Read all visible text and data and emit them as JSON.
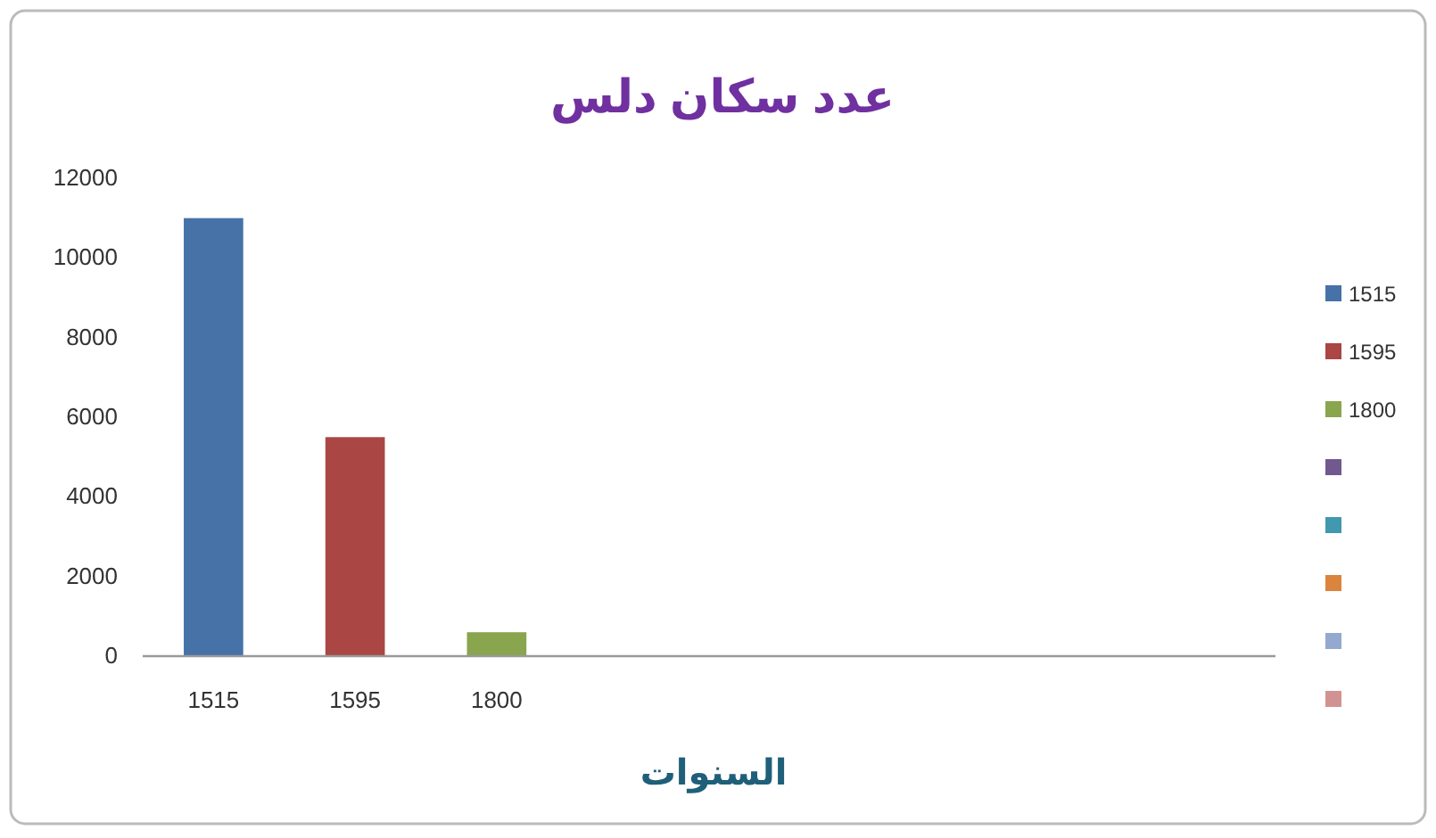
{
  "chart_data": {
    "type": "bar",
    "title": "عدد سكان دلس",
    "xlabel": "السنوات",
    "categories": [
      "1515",
      "1595",
      "1800",
      null,
      null,
      null,
      null,
      null
    ],
    "series": [
      {
        "name": "1515",
        "color": "#4672a8",
        "values": [
          11000,
          null,
          null,
          null,
          null,
          null,
          null,
          null
        ]
      },
      {
        "name": "1595",
        "color": "#aa4643",
        "values": [
          null,
          5500,
          null,
          null,
          null,
          null,
          null,
          null
        ]
      },
      {
        "name": "1800",
        "color": "#89a54e",
        "values": [
          null,
          null,
          600,
          null,
          null,
          null,
          null,
          null
        ]
      },
      {
        "color": "#71588f",
        "values": [
          null,
          null,
          null,
          null,
          null,
          null,
          null,
          null
        ]
      },
      {
        "color": "#4198af",
        "values": [
          null,
          null,
          null,
          null,
          null,
          null,
          null,
          null
        ]
      },
      {
        "color": "#db843d",
        "values": [
          null,
          null,
          null,
          null,
          null,
          null,
          null,
          null
        ]
      },
      {
        "color": "#93a9cf",
        "values": [
          null,
          null,
          null,
          null,
          null,
          null,
          null,
          null
        ]
      },
      {
        "color": "#d19392",
        "values": [
          null,
          null,
          null,
          null,
          null,
          null,
          null,
          null
        ]
      }
    ],
    "ylim": [
      0,
      12000
    ],
    "yticks": [
      0,
      2000,
      4000,
      6000,
      8000,
      10000,
      12000
    ],
    "grid": false,
    "legend": "right"
  }
}
